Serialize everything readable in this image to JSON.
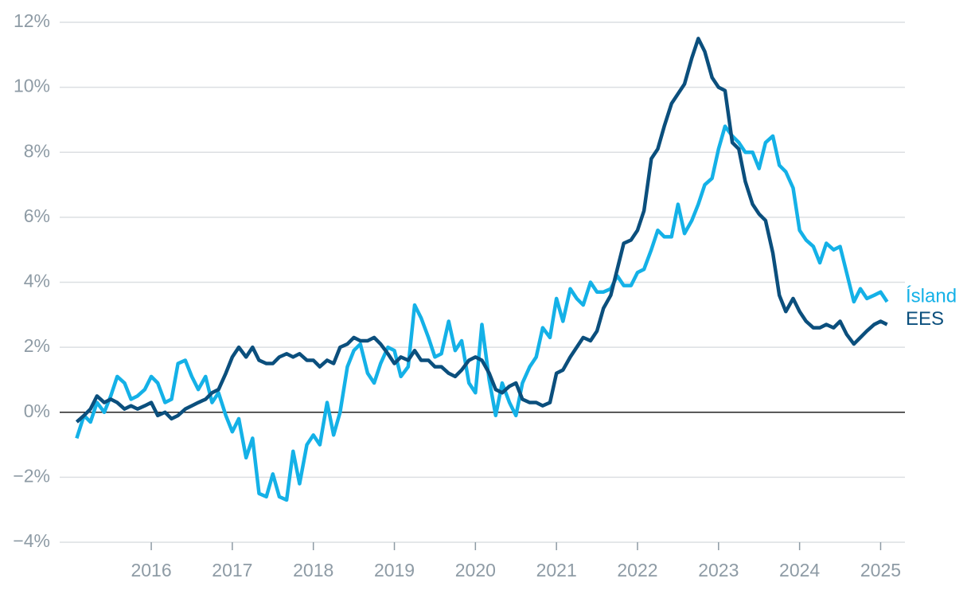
{
  "chart_data": {
    "type": "line",
    "x": [
      2015.08,
      2015.17,
      2015.25,
      2015.33,
      2015.42,
      2015.5,
      2015.58,
      2015.67,
      2015.75,
      2015.83,
      2015.92,
      2016.0,
      2016.08,
      2016.17,
      2016.25,
      2016.33,
      2016.42,
      2016.5,
      2016.58,
      2016.67,
      2016.75,
      2016.83,
      2016.92,
      2017.0,
      2017.08,
      2017.17,
      2017.25,
      2017.33,
      2017.42,
      2017.5,
      2017.58,
      2017.67,
      2017.75,
      2017.83,
      2017.92,
      2018.0,
      2018.08,
      2018.17,
      2018.25,
      2018.33,
      2018.42,
      2018.5,
      2018.58,
      2018.67,
      2018.75,
      2018.83,
      2018.92,
      2019.0,
      2019.08,
      2019.17,
      2019.25,
      2019.33,
      2019.42,
      2019.5,
      2019.58,
      2019.67,
      2019.75,
      2019.83,
      2019.92,
      2020.0,
      2020.08,
      2020.17,
      2020.25,
      2020.33,
      2020.42,
      2020.5,
      2020.58,
      2020.67,
      2020.75,
      2020.83,
      2020.92,
      2021.0,
      2021.08,
      2021.17,
      2021.25,
      2021.33,
      2021.42,
      2021.5,
      2021.58,
      2021.67,
      2021.75,
      2021.83,
      2021.92,
      2022.0,
      2022.08,
      2022.17,
      2022.25,
      2022.33,
      2022.42,
      2022.5,
      2022.58,
      2022.67,
      2022.75,
      2022.83,
      2022.92,
      2023.0,
      2023.08,
      2023.17,
      2023.25,
      2023.33,
      2023.42,
      2023.5,
      2023.58,
      2023.67,
      2023.75,
      2023.83,
      2023.92,
      2024.0,
      2024.08,
      2024.17,
      2024.25,
      2024.33,
      2024.42,
      2024.5,
      2024.58,
      2024.67,
      2024.75,
      2024.83,
      2024.92,
      2025.0,
      2025.08
    ],
    "series": [
      {
        "name": "Ísland",
        "color": "#14b1e7",
        "values": [
          -0.8,
          -0.1,
          -0.3,
          0.3,
          0.0,
          0.5,
          1.1,
          0.9,
          0.4,
          0.5,
          0.7,
          1.1,
          0.9,
          0.3,
          0.4,
          1.5,
          1.6,
          1.1,
          0.7,
          1.1,
          0.3,
          0.6,
          -0.1,
          -0.6,
          -0.2,
          -1.4,
          -0.8,
          -2.5,
          -2.6,
          -1.9,
          -2.6,
          -2.7,
          -1.2,
          -2.2,
          -1.0,
          -0.7,
          -1.0,
          0.3,
          -0.7,
          0.0,
          1.4,
          1.9,
          2.1,
          1.2,
          0.9,
          1.5,
          2.0,
          1.9,
          1.1,
          1.4,
          3.3,
          2.9,
          2.3,
          1.7,
          1.8,
          2.8,
          1.9,
          2.2,
          0.9,
          0.6,
          2.7,
          1.0,
          -0.1,
          0.9,
          0.3,
          -0.1,
          0.9,
          1.4,
          1.7,
          2.6,
          2.3,
          3.5,
          2.8,
          3.8,
          3.5,
          3.3,
          4.0,
          3.7,
          3.7,
          3.8,
          4.2,
          3.9,
          3.9,
          4.3,
          4.4,
          5.0,
          5.6,
          5.4,
          5.4,
          6.4,
          5.5,
          5.9,
          6.4,
          7.0,
          7.2,
          8.1,
          8.8,
          8.5,
          8.3,
          8.0,
          8.0,
          7.5,
          8.3,
          8.5,
          7.6,
          7.4,
          6.9,
          5.6,
          5.3,
          5.1,
          4.6,
          5.2,
          5.0,
          5.1,
          4.3,
          3.4,
          3.8,
          3.5,
          3.6,
          3.7,
          3.4
        ]
      },
      {
        "name": "EES",
        "color": "#0b4f7d",
        "values": [
          -0.3,
          -0.1,
          0.1,
          0.5,
          0.3,
          0.4,
          0.3,
          0.1,
          0.2,
          0.1,
          0.2,
          0.3,
          -0.1,
          0.0,
          -0.2,
          -0.1,
          0.1,
          0.2,
          0.3,
          0.4,
          0.6,
          0.7,
          1.2,
          1.7,
          2.0,
          1.7,
          2.0,
          1.6,
          1.5,
          1.5,
          1.7,
          1.8,
          1.7,
          1.8,
          1.6,
          1.6,
          1.4,
          1.6,
          1.5,
          2.0,
          2.1,
          2.3,
          2.2,
          2.2,
          2.3,
          2.1,
          1.8,
          1.5,
          1.7,
          1.6,
          1.9,
          1.6,
          1.6,
          1.4,
          1.4,
          1.2,
          1.1,
          1.3,
          1.6,
          1.7,
          1.6,
          1.2,
          0.7,
          0.6,
          0.8,
          0.9,
          0.4,
          0.3,
          0.3,
          0.2,
          0.3,
          1.2,
          1.3,
          1.7,
          2.0,
          2.3,
          2.2,
          2.5,
          3.2,
          3.6,
          4.4,
          5.2,
          5.3,
          5.6,
          6.2,
          7.8,
          8.1,
          8.8,
          9.5,
          9.8,
          10.1,
          10.9,
          11.5,
          11.1,
          10.3,
          10.0,
          9.9,
          8.3,
          8.1,
          7.1,
          6.4,
          6.1,
          5.9,
          4.9,
          3.6,
          3.1,
          3.5,
          3.1,
          2.8,
          2.6,
          2.6,
          2.7,
          2.6,
          2.8,
          2.4,
          2.1,
          2.3,
          2.5,
          2.7,
          2.8,
          2.7
        ]
      }
    ],
    "xlim": [
      2014.87,
      2025.3
    ],
    "xticks": [
      2016,
      2017,
      2018,
      2019,
      2020,
      2021,
      2022,
      2023,
      2024,
      2025
    ],
    "ylim": [
      -4,
      12
    ],
    "yticks": [
      {
        "value": -4,
        "label": "−4%"
      },
      {
        "value": -2,
        "label": "−2%"
      },
      {
        "value": 0,
        "label": "0%"
      },
      {
        "value": 2,
        "label": "2%"
      },
      {
        "value": 4,
        "label": "4%"
      },
      {
        "value": 6,
        "label": "6%"
      },
      {
        "value": 8,
        "label": "8%"
      },
      {
        "value": 10,
        "label": "10%"
      },
      {
        "value": 12,
        "label": "12%"
      }
    ],
    "grid": true
  }
}
